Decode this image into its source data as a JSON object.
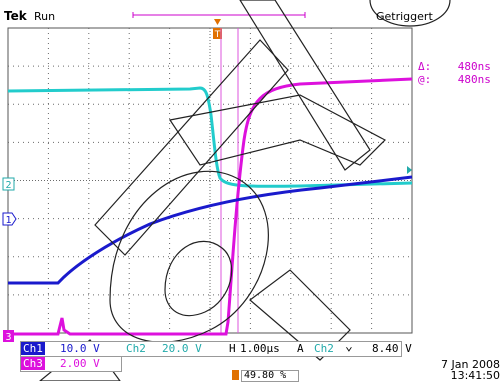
{
  "header": {
    "brand": "Tek",
    "acquisition_state": "Run",
    "trigger_state": "Getriggert"
  },
  "cursors": {
    "delta_label": "Δ:",
    "delta_value": "480ns",
    "at_label": "@:",
    "at_value": "480ns"
  },
  "channel_markers": {
    "ch1": "1",
    "ch2": "2",
    "ch3": "3",
    "trigger": "T"
  },
  "settings": {
    "ch1_label": "Ch1",
    "ch1_scale": "10.0 V",
    "ch2_label": "Ch2",
    "ch2_scale": "20.0 V",
    "ch3_label": "Ch3",
    "ch3_scale": "2.00 V",
    "timebase_label": "H",
    "timebase_value": "1.00µs",
    "trigger_mode": "A",
    "trigger_source": "Ch2",
    "trigger_slope_icon": "falling-edge-icon",
    "trigger_level": "8.40 V",
    "trigger_position": "49.80 %"
  },
  "timestamp": {
    "date": "7 Jan  2008",
    "time": "13:41:50"
  },
  "colors": {
    "ch1": "#1a1acc",
    "ch2": "#22cccc",
    "ch3": "#dd11dd",
    "trigger": "#e07000",
    "grid": "#6a6a6a"
  }
}
